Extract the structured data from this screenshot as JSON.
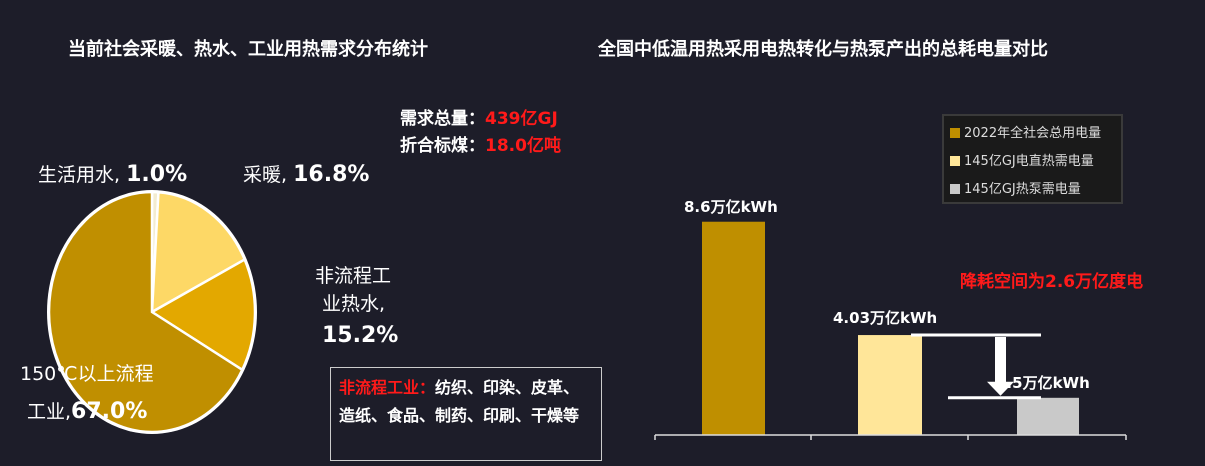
{
  "left": {
    "title": "当前社会采暖、热水、工业用热需求分布统计",
    "summary": [
      {
        "label": "需求总量：",
        "value": "439亿GJ"
      },
      {
        "label": "折合标煤：",
        "value": "18.0亿吨"
      }
    ],
    "note": {
      "label": "非流程工业：",
      "text": "纺织、印染、皮革、造纸、食品、制药、印刷、干燥等"
    }
  },
  "right": {
    "title": "全国中低温用热采用电热转化与热泵产出的总耗电量对比",
    "annotation": "降耗空间为2.6万亿度电"
  },
  "chart_data": [
    {
      "type": "pie",
      "title": "当前社会采暖、热水、工业用热需求分布统计",
      "slices": [
        {
          "label": "生活用水",
          "value": 1.0,
          "display": "1.0%",
          "color": "#f3ecd0"
        },
        {
          "label": "采暖",
          "value": 16.8,
          "display": "16.8%",
          "color": "#fdd866"
        },
        {
          "label": "非流程工业热水",
          "label_lines": [
            "非流程工",
            "业热水,"
          ],
          "value": 15.2,
          "display": "15.2%",
          "color": "#e3a800"
        },
        {
          "label": "150℃以上流程工业",
          "label_lines": [
            "150℃以上流程",
            "工业,"
          ],
          "value": 67.0,
          "display": "67.0%",
          "color": "#c08f00"
        }
      ]
    },
    {
      "type": "bar",
      "title": "全国中低温用热采用电热转化与热泵产出的总耗电量对比",
      "ylabel": "",
      "ylim": [
        0,
        8.6
      ],
      "grid": false,
      "legend": "top-right",
      "series": [
        {
          "name": "2022年全社会总用电量",
          "value": 8.6,
          "label": "8.6万亿kWh",
          "color": "#bf8f00"
        },
        {
          "name": "145亿GJ电直热需电量",
          "value": 4.03,
          "label": "4.03万亿kWh",
          "color": "#ffe699"
        },
        {
          "name": "145亿GJ热泵需电量",
          "value": 1.5,
          "label": "1.5万亿kWh",
          "color": "#c9c9c9"
        }
      ]
    }
  ]
}
